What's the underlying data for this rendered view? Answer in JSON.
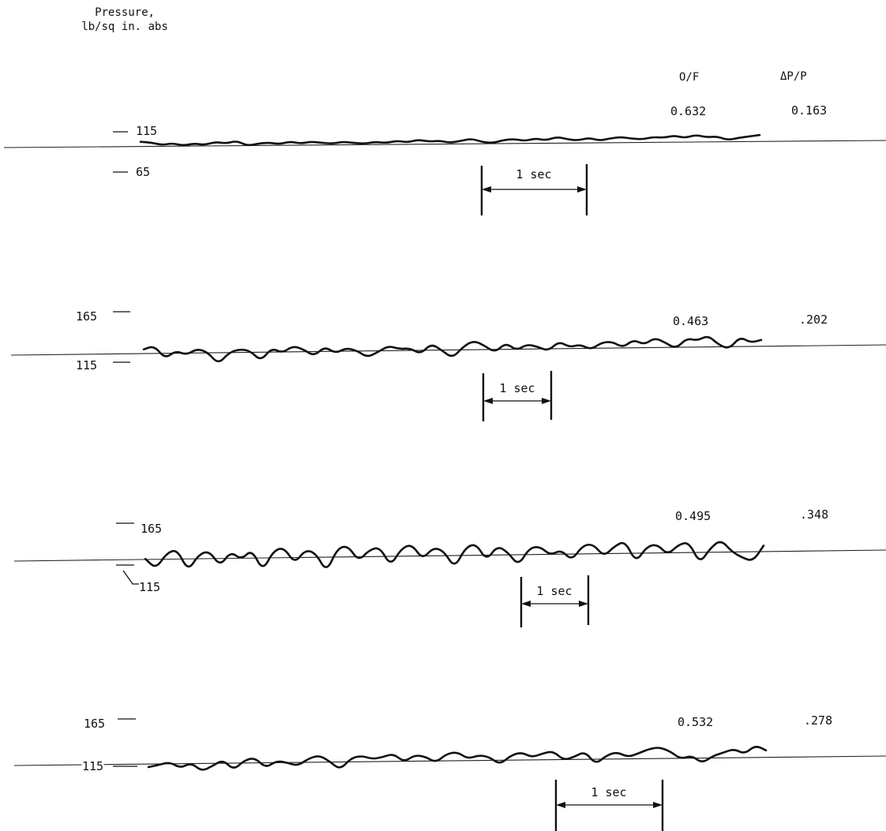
{
  "chart_data": {
    "type": "line",
    "title": "",
    "ylabel": "Pressure,\nlb/sq in. abs",
    "column_headers": {
      "of": "O/F",
      "dpp": "ΔP/P"
    },
    "time_scale_label": "1 sec",
    "panels": [
      {
        "of": "0.632",
        "dpp": "0.163",
        "y_tick_upper": "115",
        "y_tick_lower": "65",
        "amplitude": "low",
        "series": [
          {
            "t": [
              0,
              0.1,
              0.2,
              0.3,
              0.4,
              0.5,
              0.6,
              0.7,
              0.8,
              0.9,
              1.0,
              1.1,
              1.2,
              1.3,
              1.4,
              1.5,
              1.6,
              1.7,
              1.8,
              1.9,
              2.0,
              2.1,
              2.2,
              2.3,
              2.4,
              2.5,
              2.6,
              2.7,
              2.8,
              2.9,
              3.0,
              3.1,
              3.2,
              3.3,
              3.4,
              3.5,
              3.6,
              3.7,
              3.8,
              3.9,
              4.0,
              4.1,
              4.2,
              4.3,
              4.4,
              4.5,
              4.6,
              4.7,
              4.8,
              4.9,
              5.0,
              5.1,
              5.2,
              5.3,
              5.4,
              5.5,
              5.6,
              5.7,
              5.8
            ],
            "p": [
              108,
              106,
              100,
              104,
              98,
              103,
              99,
              106,
              102,
              108,
              96,
              101,
              103,
              99,
              105,
              100,
              104,
              101,
              99,
              103,
              100,
              98,
              102,
              99,
              104,
              100,
              106,
              101,
              103,
              98,
              102,
              107,
              99,
              96,
              103,
              105,
              100,
              106,
              101,
              109,
              103,
              100,
              106,
              99,
              104,
              107,
              103,
              101,
              106,
              104,
              109,
              103,
              110,
              104,
              106,
              97,
              102,
              105,
              108
            ]
          }
        ]
      },
      {
        "of": "0.463",
        "dpp": ".202",
        "y_tick_upper": "165",
        "y_tick_lower": "115",
        "amplitude": "medium",
        "series": [
          {
            "t": [
              0,
              0.1,
              0.2,
              0.3,
              0.4,
              0.5,
              0.6,
              0.7,
              0.8,
              0.9,
              1.0,
              1.1,
              1.2,
              1.3,
              1.4,
              1.5,
              1.6,
              1.7,
              1.8,
              1.9,
              2.0,
              2.1,
              2.2,
              2.3,
              2.4,
              2.5,
              2.6,
              2.7,
              2.8,
              2.9,
              3.0,
              3.1,
              3.2,
              3.3,
              3.4,
              3.5,
              3.6,
              3.7,
              3.8,
              3.9,
              4.0,
              4.1,
              4.2,
              4.3,
              4.4,
              4.5,
              4.6,
              4.7,
              4.8,
              4.9,
              5.0,
              5.1,
              5.2,
              5.3,
              5.4,
              5.5,
              5.6,
              5.7,
              5.8
            ],
            "p": [
              132,
              140,
              110,
              128,
              118,
              132,
              124,
              96,
              122,
              130,
              126,
              102,
              132,
              120,
              136,
              128,
              112,
              134,
              118,
              130,
              124,
              108,
              120,
              134,
              126,
              128,
              114,
              138,
              122,
              104,
              130,
              144,
              132,
              116,
              138,
              120,
              134,
              128,
              118,
              140,
              126,
              132,
              120,
              136,
              138,
              124,
              142,
              130,
              146,
              134,
              120,
              144,
              138,
              150,
              128,
              118,
              146,
              132,
              138
            ]
          }
        ]
      },
      {
        "of": "0.495",
        "dpp": ".348",
        "y_tick_upper": "165",
        "y_tick_lower": "115",
        "amplitude": "high",
        "series": [
          {
            "t": [
              0,
              0.1,
              0.2,
              0.3,
              0.4,
              0.5,
              0.6,
              0.7,
              0.8,
              0.9,
              1.0,
              1.1,
              1.2,
              1.3,
              1.4,
              1.5,
              1.6,
              1.7,
              1.8,
              1.9,
              2.0,
              2.1,
              2.2,
              2.3,
              2.4,
              2.5,
              2.6,
              2.7,
              2.8,
              2.9,
              3.0,
              3.1,
              3.2,
              3.3,
              3.4,
              3.5,
              3.6,
              3.7,
              3.8,
              3.9,
              4.0,
              4.1,
              4.2,
              4.3,
              4.4,
              4.5,
              4.6,
              4.7,
              4.8,
              4.9,
              5.0,
              5.1,
              5.2,
              5.3,
              5.4,
              5.5,
              5.6,
              5.7,
              5.8
            ],
            "p": [
              132,
              110,
              144,
              152,
              104,
              140,
              148,
              114,
              146,
              128,
              150,
              102,
              146,
              154,
              118,
              148,
              140,
              98,
              150,
              156,
              122,
              146,
              152,
              110,
              148,
              158,
              124,
              150,
              142,
              104,
              148,
              158,
              120,
              152,
              138,
              108,
              146,
              150,
              130,
              142,
              118,
              150,
              154,
              126,
              148,
              160,
              112,
              146,
              152,
              128,
              150,
              156,
              108,
              142,
              160,
              134,
              120,
              112,
              146
            ]
          }
        ]
      },
      {
        "of": "0.532",
        "dpp": ".278",
        "y_tick_upper": "165",
        "y_tick_lower": "115",
        "amplitude": "medium-high",
        "series": [
          {
            "t": [
              0,
              0.1,
              0.2,
              0.3,
              0.4,
              0.5,
              0.6,
              0.7,
              0.8,
              0.9,
              1.0,
              1.1,
              1.2,
              1.3,
              1.4,
              1.5,
              1.6,
              1.7,
              1.8,
              1.9,
              2.0,
              2.1,
              2.2,
              2.3,
              2.4,
              2.5,
              2.6,
              2.7,
              2.8,
              2.9,
              3.0,
              3.1,
              3.2,
              3.3,
              3.4,
              3.5,
              3.6,
              3.7,
              3.8,
              3.9,
              4.0,
              4.1,
              4.2,
              4.3,
              4.4,
              4.5,
              4.6,
              4.7,
              4.8,
              4.9,
              5.0,
              5.1,
              5.2,
              5.3,
              5.4,
              5.5,
              5.6,
              5.7,
              5.8
            ],
            "p": [
              115,
              120,
              126,
              112,
              124,
              104,
              116,
              130,
              106,
              128,
              134,
              110,
              126,
              122,
              114,
              130,
              138,
              124,
              104,
              130,
              136,
              128,
              132,
              140,
              120,
              136,
              132,
              118,
              138,
              142,
              126,
              134,
              130,
              112,
              132,
              140,
              128,
              136,
              142,
              120,
              128,
              140,
              110,
              130,
              138,
              126,
              134,
              144,
              148,
              138,
              120,
              128,
              110,
              126,
              134,
              142,
              130,
              150,
              138
            ]
          }
        ]
      }
    ]
  }
}
